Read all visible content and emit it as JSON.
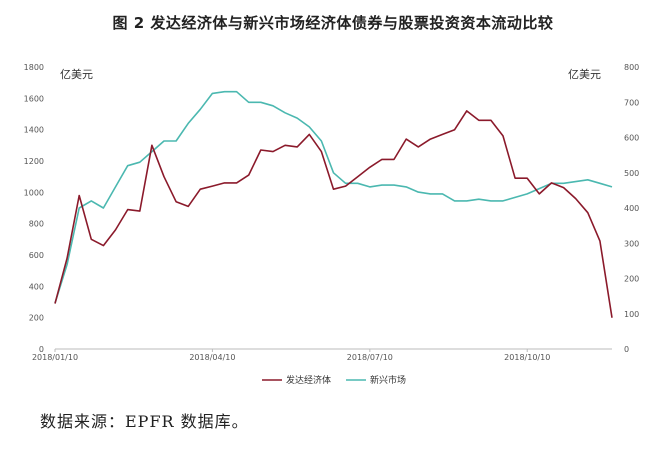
{
  "title": "图 2 发达经济体与新兴市场经济体债券与股票投资资本流动比较",
  "source_note": "数据来源：EPFR 数据库。",
  "chart_data": {
    "type": "line",
    "left_axis": {
      "unit": "亿美元",
      "range": [
        0,
        1800
      ],
      "ticks": [
        "0",
        "200",
        "400",
        "600",
        "800",
        "1000",
        "1200",
        "1400",
        "1600",
        "1800"
      ]
    },
    "right_axis": {
      "unit": "亿美元",
      "range": [
        0,
        800
      ],
      "ticks": [
        "0",
        "100",
        "200",
        "300",
        "400",
        "500",
        "600",
        "700",
        "800"
      ]
    },
    "x_tick_labels": [
      "2018/01/10",
      "2018/04/10",
      "2018/07/10",
      "2018/10/10"
    ],
    "x_tick_index": [
      0,
      13,
      26,
      39
    ],
    "grid": false,
    "legend_position": "bottom",
    "series": [
      {
        "name": "发达经济体",
        "axis": "left",
        "color": "#8b1a2b",
        "values": [
          290,
          580,
          980,
          700,
          660,
          760,
          890,
          880,
          1300,
          1100,
          940,
          910,
          1020,
          1040,
          1060,
          1060,
          1110,
          1270,
          1260,
          1300,
          1290,
          1370,
          1260,
          1020,
          1040,
          1100,
          1160,
          1210,
          1210,
          1340,
          1290,
          1340,
          1370,
          1400,
          1520,
          1460,
          1460,
          1360,
          1090,
          1090,
          990,
          1060,
          1030,
          960,
          870,
          690,
          200
        ]
      },
      {
        "name": "新兴市场",
        "axis": "right",
        "color": "#4bb8b0",
        "values": [
          130,
          240,
          400,
          420,
          400,
          460,
          520,
          530,
          560,
          590,
          590,
          640,
          680,
          725,
          730,
          730,
          700,
          700,
          690,
          670,
          655,
          630,
          590,
          500,
          470,
          470,
          460,
          465,
          465,
          460,
          445,
          440,
          440,
          420,
          420,
          425,
          420,
          420,
          430,
          440,
          455,
          470,
          470,
          475,
          480,
          470,
          460
        ]
      }
    ]
  }
}
